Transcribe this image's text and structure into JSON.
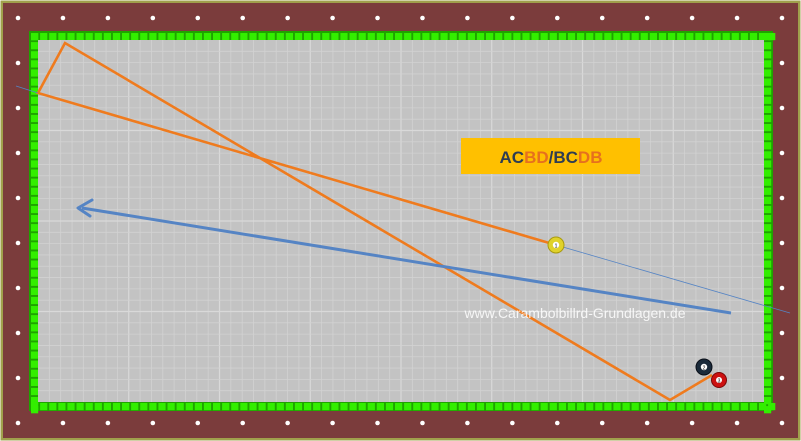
{
  "title": {
    "part1_dark": "AC",
    "part2_orange": "BD",
    "separator": "/",
    "part3_dark": "BC",
    "part4_orange": "DB"
  },
  "watermark": "www.Carambolbillrd-Grundlagen.de",
  "balls": [
    {
      "name": "ball-1",
      "number": "1",
      "color": "#e0d22a"
    },
    {
      "name": "ball-2",
      "number": "2",
      "color": "#1a2a3a"
    },
    {
      "name": "ball-3",
      "number": "3",
      "color": "#cc1010"
    }
  ],
  "colors": {
    "rail": "#7b3c3c",
    "cloth": "#c3c3c3",
    "cushion": "#33ee00",
    "path_orange": "#ef7b1e",
    "path_blue": "#5584c4",
    "title_box": "#ffc000",
    "title_dark": "#2f3d52",
    "title_orange": "#e6701e"
  }
}
